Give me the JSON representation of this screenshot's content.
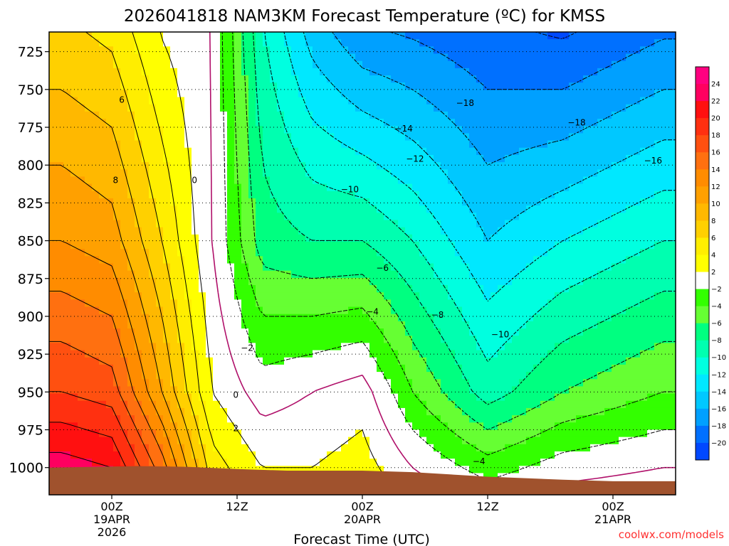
{
  "chart_data": {
    "type": "heatmap",
    "title": "2026041818 NAM3KM Forecast Temperature (ºC) for KMSS",
    "xlabel": "Forecast Time (UTC)",
    "ylabel": "",
    "credit": "coolwx.com/models",
    "x_range_hours": [
      -5,
      45
    ],
    "y_range_hpa": [
      712,
      1018
    ],
    "y_ticks": [
      {
        "value": 725,
        "label": "725"
      },
      {
        "value": 750,
        "label": "750"
      },
      {
        "value": 775,
        "label": "775"
      },
      {
        "value": 800,
        "label": "800"
      },
      {
        "value": 825,
        "label": "825"
      },
      {
        "value": 850,
        "label": "850"
      },
      {
        "value": 875,
        "label": "875"
      },
      {
        "value": 900,
        "label": "900"
      },
      {
        "value": 925,
        "label": "925"
      },
      {
        "value": 950,
        "label": "950"
      },
      {
        "value": 975,
        "label": "975"
      },
      {
        "value": 1000,
        "label": "1000"
      }
    ],
    "x_ticks": [
      {
        "hour": 0,
        "lines": [
          "00Z",
          "19APR",
          "2026"
        ]
      },
      {
        "hour": 10,
        "lines": [
          "12Z"
        ]
      },
      {
        "hour": 20,
        "lines": [
          "00Z",
          "20APR"
        ]
      },
      {
        "hour": 30,
        "lines": [
          "12Z"
        ]
      },
      {
        "hour": 40,
        "lines": [
          "00Z",
          "21APR"
        ]
      }
    ],
    "colorbar": {
      "levels": [
        24,
        22,
        20,
        18,
        16,
        14,
        12,
        10,
        8,
        6,
        4,
        2,
        -2,
        -4,
        -6,
        -8,
        -10,
        -12,
        -14,
        -16,
        -18,
        -20
      ],
      "colors": [
        "#ff0080",
        "#ff0060",
        "#ff1010",
        "#ff3010",
        "#ff5010",
        "#ff7010",
        "#ff8c00",
        "#ffa000",
        "#ffb800",
        "#ffd000",
        "#ffee00",
        "#ffff00",
        "#ffffff",
        "#33ff00",
        "#66ff33",
        "#00ff80",
        "#00ffb0",
        "#00ffe0",
        "#00e8ff",
        "#00c8ff",
        "#00a0ff",
        "#0070ff",
        "#0048ff"
      ]
    },
    "temperature_by_pressure": [
      {
        "hour": -4,
        "t1000": 23,
        "t950": 18,
        "t850": 12,
        "t750": 8
      },
      {
        "hour": 0,
        "t1000": 22,
        "t950": 17,
        "t850": 11,
        "t750": 7
      },
      {
        "hour": 4,
        "t1000": 15,
        "t950": 10,
        "t850": 6,
        "t750": 3
      },
      {
        "hour": 8,
        "t1000": 5,
        "t950": 2,
        "t850": 0,
        "t750": 0
      },
      {
        "hour": 12,
        "t1000": 2,
        "t950": -1,
        "t850": -7,
        "t750": -9
      },
      {
        "hour": 16,
        "t1000": 2,
        "t950": 0,
        "t850": -8,
        "t750": -13
      },
      {
        "hour": 20,
        "t1000": 3,
        "t950": 1,
        "t850": -8,
        "t750": -15
      },
      {
        "hour": 24,
        "t1000": 0,
        "t950": -4,
        "t850": -10,
        "t750": -16
      },
      {
        "hour": 30,
        "t1000": -3,
        "t950": -9,
        "t850": -14,
        "t750": -18
      },
      {
        "hour": 36,
        "t1000": -1,
        "t950": -6,
        "t850": -12,
        "t750": -18
      },
      {
        "hour": 44,
        "t1000": 0,
        "t950": -4,
        "t850": -10,
        "t750": -16
      }
    ],
    "contour_labels": [
      {
        "text": "6",
        "hour": 0.8,
        "p": 757
      },
      {
        "text": "8",
        "hour": 0.3,
        "p": 810
      },
      {
        "text": "0",
        "hour": 6.6,
        "p": 810
      },
      {
        "text": "−2",
        "hour": 10.8,
        "p": 921
      },
      {
        "text": "0",
        "hour": 9.9,
        "p": 952
      },
      {
        "text": "2",
        "hour": 9.9,
        "p": 974
      },
      {
        "text": "−4",
        "hour": 20.8,
        "p": 897
      },
      {
        "text": "−6",
        "hour": 21.6,
        "p": 868
      },
      {
        "text": "−8",
        "hour": 26,
        "p": 899
      },
      {
        "text": "−10",
        "hour": 19,
        "p": 816
      },
      {
        "text": "−10",
        "hour": 31,
        "p": 912
      },
      {
        "text": "−12",
        "hour": 24.2,
        "p": 796
      },
      {
        "text": "−14",
        "hour": 23.3,
        "p": 776
      },
      {
        "text": "−18",
        "hour": 28.2,
        "p": 759
      },
      {
        "text": "−18",
        "hour": 37.1,
        "p": 772
      },
      {
        "text": "−16",
        "hour": 43.2,
        "p": 797
      },
      {
        "text": "−4",
        "hour": 29.3,
        "p": 996
      }
    ]
  }
}
